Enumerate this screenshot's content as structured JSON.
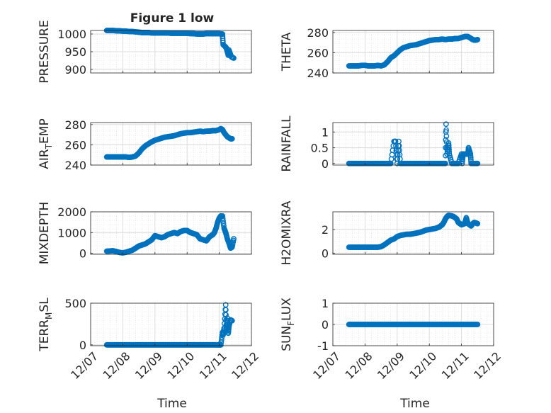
{
  "chart_data": {
    "type": "scatter",
    "title": "Figure 1 low",
    "marker_color": "#0072bd",
    "x_tick_labels": [
      "12/07",
      "12/08",
      "12/09",
      "12/10",
      "12/11",
      "12/12"
    ],
    "xlabel": "Time",
    "panels": [
      {
        "id": "pressure",
        "ylabel": "PRESSURE",
        "ylim": [
          890,
          1010
        ],
        "yticks": [
          900,
          950,
          1000
        ],
        "ytick_labels": [
          "900",
          "950",
          "1000"
        ],
        "series": [
          {
            "x": [
              7.5,
              7.6,
              7.7,
              7.8,
              7.9,
              8.0,
              8.1,
              8.2,
              8.3,
              8.4,
              8.5,
              8.6,
              8.7,
              8.8,
              8.9,
              9.0,
              9.1,
              9.2,
              9.3,
              9.4,
              9.5,
              9.6,
              9.7,
              9.8,
              9.9,
              10.0,
              10.1,
              10.2,
              10.3,
              10.4,
              10.5,
              10.6,
              10.7,
              10.8,
              10.9,
              11.0,
              11.05,
              11.1,
              11.12,
              11.2,
              11.22,
              11.28,
              11.3,
              11.38,
              11.45
            ],
            "y": [
              1010,
              1010,
              1010,
              1009,
              1009,
              1008,
              1008,
              1007,
              1007,
              1006,
              1005,
              1004,
              1004,
              1004,
              1003,
              1003,
              1003,
              1003,
              1003,
              1003,
              1002,
              1002,
              1002,
              1002,
              1002,
              1002,
              1001,
              1001,
              1000,
              1000,
              1000,
              1001,
              1001,
              1001,
              1001,
              1001,
              1000,
              1000,
              970,
              963,
              960,
              940,
              955,
              935,
              932
            ]
          }
        ]
      },
      {
        "id": "theta",
        "ylabel": "THETA",
        "ylim": [
          240,
          282
        ],
        "yticks": [
          240,
          260,
          280
        ],
        "ytick_labels": [
          "240",
          "260",
          "280"
        ],
        "series": [
          {
            "x": [
              7.5,
              7.6,
              7.7,
              7.8,
              7.9,
              8.0,
              8.1,
              8.2,
              8.3,
              8.4,
              8.5,
              8.6,
              8.7,
              8.8,
              8.9,
              9.0,
              9.1,
              9.2,
              9.3,
              9.4,
              9.5,
              9.6,
              9.7,
              9.8,
              9.9,
              10.0,
              10.1,
              10.2,
              10.3,
              10.4,
              10.5,
              10.6,
              10.7,
              10.8,
              10.9,
              11.0,
              11.1,
              11.2,
              11.3,
              11.35,
              11.4,
              11.45,
              11.5
            ],
            "y": [
              247,
              247,
              247,
              247,
              247.5,
              247.5,
              247,
              247,
              247,
              247.5,
              247,
              248,
              251,
              255,
              257,
              260,
              263,
              265,
              266,
              267,
              267.5,
              268,
              269,
              270,
              271,
              272,
              272.5,
              273,
              273,
              273.5,
              273,
              273.5,
              273.5,
              274,
              274,
              275,
              276,
              276,
              274,
              273,
              272.5,
              272.5,
              273
            ]
          }
        ]
      },
      {
        "id": "air_temp",
        "ylabel": "AIR",
        "ylabel_sub": "T",
        "ylabel_tail": "EMP",
        "ylim": [
          240,
          282
        ],
        "yticks": [
          240,
          260,
          280
        ],
        "ytick_labels": [
          "240",
          "260",
          "280"
        ],
        "series": [
          {
            "x": [
              7.5,
              7.6,
              7.7,
              7.8,
              7.9,
              8.0,
              8.1,
              8.2,
              8.3,
              8.4,
              8.5,
              8.6,
              8.7,
              8.8,
              8.9,
              9.0,
              9.1,
              9.2,
              9.3,
              9.4,
              9.5,
              9.6,
              9.7,
              9.8,
              9.9,
              10.0,
              10.1,
              10.2,
              10.3,
              10.4,
              10.5,
              10.6,
              10.7,
              10.8,
              10.9,
              11.0,
              11.05,
              11.1,
              11.15,
              11.2,
              11.25,
              11.3,
              11.35,
              11.4
            ],
            "y": [
              248,
              248,
              248,
              248,
              248,
              248,
              248,
              247.5,
              248,
              249,
              252,
              256,
              259,
              261,
              263,
              264.5,
              265.5,
              266.5,
              267.5,
              268,
              268.5,
              269,
              270,
              271,
              271.5,
              272,
              272,
              272.5,
              273,
              273.5,
              273,
              273.5,
              273.5,
              274,
              274,
              275,
              276,
              275,
              272,
              270,
              268,
              267,
              266,
              266
            ]
          }
        ]
      },
      {
        "id": "rainfall",
        "ylabel": "RAINFALL",
        "ylim": [
          -0.05,
          1.3
        ],
        "yticks": [
          0,
          0.5,
          1
        ],
        "ytick_labels": [
          "0",
          "0.5",
          "1"
        ],
        "series": [
          {
            "x": [
              7.5,
              7.6,
              7.7,
              7.8,
              7.9,
              8.0,
              8.1,
              8.2,
              8.3,
              8.4,
              8.5,
              8.6,
              8.7,
              8.8,
              8.9,
              8.95,
              9.0,
              9.05,
              9.1,
              9.2,
              9.3,
              9.4,
              9.5,
              9.6,
              9.7,
              9.8,
              9.9,
              10.0,
              10.1,
              10.2,
              10.3,
              10.4,
              10.5,
              10.52,
              10.55,
              10.6,
              10.62,
              10.7,
              10.8,
              10.9,
              11.0,
              11.02,
              11.05,
              11.1,
              11.15,
              11.2,
              11.22,
              11.28,
              11.3,
              11.4,
              11.5
            ],
            "y": [
              0,
              0,
              0,
              0,
              0,
              0,
              0,
              0,
              0,
              0,
              0,
              0,
              0,
              0,
              0.7,
              0.7,
              0,
              0.7,
              0,
              0,
              0,
              0,
              0,
              0,
              0,
              0,
              0,
              0,
              0,
              0,
              0,
              0,
              0,
              1.25,
              0.3,
              0.65,
              0.3,
              0,
              0,
              0,
              0.3,
              0,
              0.3,
              0.3,
              0.3,
              0.3,
              0.5,
              0.3,
              0,
              0,
              0
            ]
          }
        ]
      },
      {
        "id": "mixdepth",
        "ylabel": "MIXDEPTH",
        "ylim": [
          -50,
          2000
        ],
        "yticks": [
          0,
          1000,
          2000
        ],
        "ytick_labels": [
          "0",
          "1000",
          "2000"
        ],
        "series": [
          {
            "x": [
              7.5,
              7.6,
              7.7,
              7.8,
              7.9,
              8.0,
              8.1,
              8.2,
              8.3,
              8.4,
              8.5,
              8.6,
              8.7,
              8.8,
              8.9,
              9.0,
              9.1,
              9.2,
              9.3,
              9.4,
              9.5,
              9.6,
              9.7,
              9.8,
              9.9,
              10.0,
              10.1,
              10.2,
              10.3,
              10.4,
              10.5,
              10.6,
              10.65,
              10.7,
              10.75,
              10.8,
              10.85,
              10.9,
              10.95,
              11.0,
              11.05,
              11.1,
              11.15,
              11.2,
              11.25,
              11.3,
              11.35,
              11.4,
              11.45
            ],
            "y": [
              100,
              110,
              120,
              80,
              40,
              20,
              50,
              100,
              150,
              250,
              350,
              400,
              450,
              550,
              650,
              850,
              800,
              750,
              800,
              900,
              950,
              1000,
              950,
              1050,
              1100,
              1100,
              1000,
              950,
              900,
              700,
              650,
              600,
              700,
              800,
              850,
              900,
              1000,
              1200,
              1500,
              1700,
              1800,
              1800,
              1200,
              1000,
              700,
              500,
              250,
              300,
              700
            ]
          }
        ]
      },
      {
        "id": "h2omixra",
        "ylabel": "H2OMIXRA",
        "ylim": [
          -0.1,
          3.5
        ],
        "yticks": [
          0,
          2
        ],
        "ytick_labels": [
          "0",
          "2"
        ],
        "series": [
          {
            "x": [
              7.5,
              7.6,
              7.7,
              7.8,
              7.9,
              8.0,
              8.1,
              8.2,
              8.3,
              8.4,
              8.5,
              8.6,
              8.7,
              8.8,
              8.9,
              9.0,
              9.1,
              9.2,
              9.3,
              9.4,
              9.5,
              9.6,
              9.7,
              9.8,
              9.9,
              10.0,
              10.1,
              10.2,
              10.3,
              10.35,
              10.4,
              10.45,
              10.5,
              10.55,
              10.6,
              10.7,
              10.75,
              10.8,
              10.85,
              10.9,
              10.95,
              11.0,
              11.05,
              11.1,
              11.15,
              11.2,
              11.3,
              11.35,
              11.4,
              11.45,
              11.5
            ],
            "y": [
              0.5,
              0.5,
              0.5,
              0.5,
              0.5,
              0.5,
              0.5,
              0.5,
              0.5,
              0.5,
              0.55,
              0.7,
              0.9,
              1.1,
              1.2,
              1.4,
              1.5,
              1.55,
              1.6,
              1.6,
              1.65,
              1.7,
              1.75,
              1.85,
              1.95,
              2.0,
              2.05,
              2.1,
              2.2,
              2.3,
              2.4,
              2.6,
              2.9,
              3.1,
              3.2,
              3.15,
              3.1,
              3.0,
              2.9,
              2.6,
              2.5,
              2.4,
              2.45,
              2.5,
              3.0,
              2.5,
              2.3,
              2.5,
              2.6,
              2.55,
              2.5
            ]
          }
        ]
      },
      {
        "id": "terr_msl",
        "ylabel": "TERR",
        "ylabel_sub": "M",
        "ylabel_tail": "SL",
        "ylim": [
          -10,
          500
        ],
        "yticks": [
          0,
          500
        ],
        "ytick_labels": [
          "0",
          "500"
        ],
        "series": [
          {
            "x": [
              7.5,
              7.6,
              7.7,
              7.8,
              7.9,
              8.0,
              8.1,
              8.2,
              8.3,
              8.4,
              8.5,
              8.6,
              8.7,
              8.8,
              8.9,
              9.0,
              9.1,
              9.2,
              9.3,
              9.4,
              9.5,
              9.6,
              9.7,
              9.8,
              9.9,
              10.0,
              10.1,
              10.2,
              10.3,
              10.4,
              10.5,
              10.6,
              10.7,
              10.8,
              10.9,
              11.0,
              11.05,
              11.1,
              11.12,
              11.15,
              11.2,
              11.22,
              11.25,
              11.28,
              11.3,
              11.35,
              11.4
            ],
            "y": [
              0,
              0,
              0,
              0,
              0,
              0,
              0,
              0,
              0,
              0,
              0,
              0,
              0,
              0,
              0,
              0,
              0,
              0,
              0,
              0,
              0,
              0,
              0,
              0,
              0,
              0,
              0,
              0,
              0,
              0,
              0,
              0,
              0,
              0,
              0,
              0,
              0,
              150,
              120,
              200,
              480,
              180,
              320,
              140,
              220,
              300,
              290
            ]
          }
        ]
      },
      {
        "id": "sun_flux",
        "ylabel": "SUN",
        "ylabel_sub": "F",
        "ylabel_tail": "LUX",
        "ylim": [
          -1,
          1
        ],
        "yticks": [
          -1,
          0,
          1
        ],
        "ytick_labels": [
          "-1",
          "0",
          "1"
        ],
        "series": [
          {
            "x": [
              7.5,
              7.6,
              7.7,
              7.8,
              7.9,
              8.0,
              8.1,
              8.2,
              8.3,
              8.4,
              8.5,
              8.6,
              8.7,
              8.8,
              8.9,
              9.0,
              9.1,
              9.2,
              9.3,
              9.4,
              9.5,
              9.6,
              9.7,
              9.8,
              9.9,
              10.0,
              10.1,
              10.2,
              10.3,
              10.4,
              10.5,
              10.6,
              10.7,
              10.8,
              10.9,
              11.0,
              11.1,
              11.2,
              11.3,
              11.4,
              11.5
            ],
            "y": [
              0,
              0,
              0,
              0,
              0,
              0,
              0,
              0,
              0,
              0,
              0,
              0,
              0,
              0,
              0,
              0,
              0,
              0,
              0,
              0,
              0,
              0,
              0,
              0,
              0,
              0,
              0,
              0,
              0,
              0,
              0,
              0,
              0,
              0,
              0,
              0,
              0,
              0,
              0,
              0,
              0
            ]
          }
        ]
      }
    ]
  }
}
